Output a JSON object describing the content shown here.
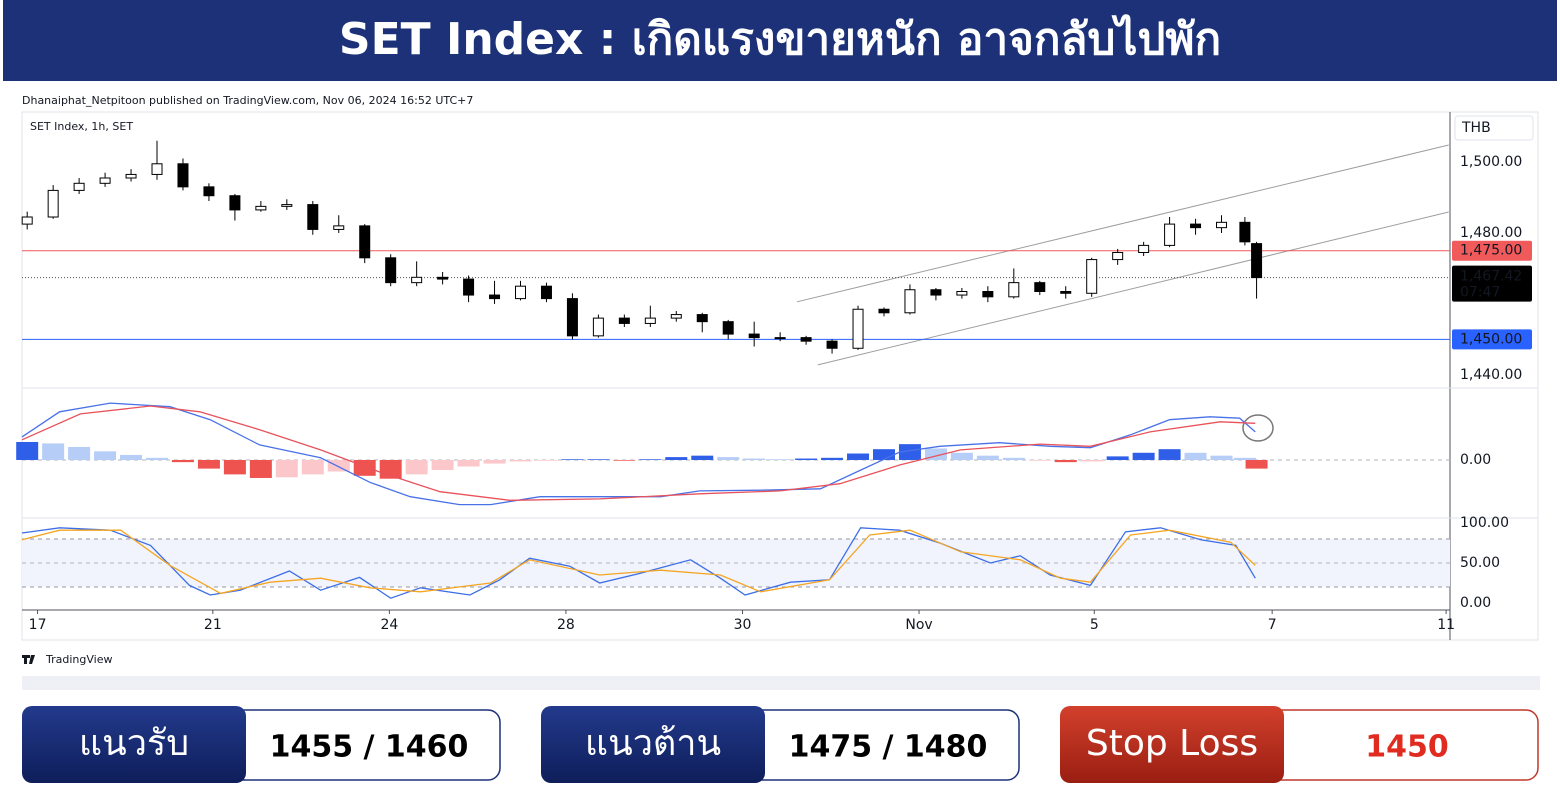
{
  "header": {
    "title": "SET Index : เกิดแรงขายหนัก อาจกลับไปพัก"
  },
  "attribution": "Dhanaiphat_Netpitoon published on TradingView.com, Nov 06, 2024 16:52 UTC+7",
  "logo": "TradingView",
  "chart_data": [
    {
      "type": "candlestick",
      "title": "SET Index, 1h, SET",
      "currency": "THB",
      "up_color": "#ffffff",
      "down_color": "#000000",
      "x": [
        0.4,
        2.4,
        4.4,
        6.4,
        8.4,
        10.4,
        12.4,
        14.4,
        16.4,
        18.4,
        20.4,
        22.4,
        24.4,
        26.4,
        28.4,
        30.4,
        32.4,
        34.4,
        36.4,
        38.4,
        40.4,
        42.4,
        44.4,
        46.4,
        48.4,
        50.4,
        52.4,
        54.4,
        56.4,
        58.4,
        60.4,
        62.4,
        64.4,
        66.4,
        68.4,
        70.4,
        72.4,
        74.4,
        76.4,
        78.4,
        80.4,
        82.4,
        84.4,
        86.4,
        88.4,
        90.4,
        92.4,
        94.2,
        95.1
      ],
      "open": [
        1482.5,
        1484.5,
        1492,
        1494,
        1495.5,
        1496.5,
        1499.5,
        1493,
        1490.5,
        1486.5,
        1487.5,
        1488,
        1481,
        1482,
        1473,
        1466,
        1467.5,
        1467,
        1462.5,
        1461.5,
        1465,
        1461.5,
        1451,
        1456,
        1454.5,
        1456,
        1457,
        1455,
        1451.5,
        1450.5,
        1450.5,
        1449.5,
        1447.5,
        1458.5,
        1457.5,
        1464,
        1462.5,
        1463.5,
        1462,
        1466,
        1463.5,
        1463,
        1472.5,
        1474.5,
        1476.5,
        1482.5,
        1481.5,
        1483,
        1477
      ],
      "high": [
        1486,
        1493.5,
        1495.5,
        1497,
        1498,
        1506,
        1501,
        1494,
        1491,
        1489,
        1489.5,
        1489,
        1485,
        1482.5,
        1474,
        1472,
        1469,
        1468,
        1466.5,
        1466.5,
        1466,
        1463,
        1457,
        1457,
        1459.5,
        1458,
        1457.5,
        1455.5,
        1455,
        1452,
        1451,
        1450,
        1459.5,
        1459,
        1465.5,
        1464.5,
        1464.5,
        1465,
        1470,
        1466.5,
        1465,
        1473,
        1475.5,
        1477.5,
        1484.5,
        1484,
        1485,
        1484.5,
        1477.5
      ],
      "low": [
        1481,
        1484,
        1491,
        1493,
        1494.5,
        1495,
        1492,
        1489,
        1483.5,
        1486,
        1486.5,
        1479.5,
        1480,
        1471.5,
        1465,
        1465,
        1465.5,
        1460.5,
        1460,
        1461,
        1460.5,
        1450,
        1450.5,
        1453.5,
        1453.5,
        1455,
        1452,
        1450,
        1448,
        1449.5,
        1448.5,
        1446,
        1447,
        1456.5,
        1457,
        1461,
        1461.5,
        1460.5,
        1461.5,
        1462.5,
        1461.5,
        1462,
        1471,
        1473.5,
        1476,
        1479.5,
        1480,
        1476.5,
        1461.5
      ],
      "close": [
        1484.5,
        1492,
        1494,
        1495.5,
        1496.5,
        1499.5,
        1493,
        1490.5,
        1486.5,
        1487.5,
        1488,
        1481,
        1482,
        1473,
        1466,
        1467.5,
        1467,
        1462.5,
        1461.5,
        1465,
        1461.5,
        1451,
        1456,
        1454.5,
        1456,
        1457,
        1455,
        1451.5,
        1450.5,
        1450.5,
        1449.5,
        1447.5,
        1458.5,
        1457.5,
        1464,
        1462.5,
        1463.5,
        1462,
        1466,
        1463.5,
        1463,
        1472.5,
        1474.5,
        1476.5,
        1482.5,
        1481.5,
        1483,
        1477.5,
        1467.42
      ],
      "xlim": [
        0,
        110
      ],
      "xticks": [
        {
          "value": 1.2,
          "label": "17"
        },
        {
          "value": 14.7,
          "label": "21"
        },
        {
          "value": 28.3,
          "label": "24"
        },
        {
          "value": 41.9,
          "label": "28"
        },
        {
          "value": 55.5,
          "label": "30"
        },
        {
          "value": 69.1,
          "label": "Nov"
        },
        {
          "value": 82.6,
          "label": "5"
        },
        {
          "value": 96.3,
          "label": "7"
        },
        {
          "value": 109.7,
          "label": "11"
        }
      ],
      "ylim": [
        1436.3,
        1514.1
      ],
      "yticks": [
        {
          "value": 1440,
          "label": "1,440.00"
        },
        {
          "value": 1480,
          "label": "1,480.00"
        },
        {
          "value": 1500,
          "label": "1,500.00"
        }
      ],
      "price_lines": [
        {
          "value": 1475,
          "label": "1,475.00",
          "color": "#f05a5a"
        },
        {
          "value": 1450,
          "label": "1,450.00",
          "color": "#2962ff"
        }
      ],
      "last_price": {
        "value": 1467.42,
        "label": "1,467.42",
        "countdown": "07:47"
      },
      "channels": [
        {
          "x": [
            59.7,
            109.9
          ],
          "values": [
            1460.6,
            1504.8
          ],
          "color": "#9e9e9e"
        },
        {
          "x": [
            61.3,
            109.9
          ],
          "values": [
            1442.8,
            1485.9
          ],
          "color": "#9e9e9e"
        }
      ]
    },
    {
      "type": "macd",
      "ylim": [
        -8.06,
        10
      ],
      "yticks": [
        {
          "value": 0,
          "label": "0.00"
        }
      ],
      "histogram_values": [
        2.5,
        2.3,
        1.8,
        1.2,
        0.7,
        0.3,
        -0.3,
        -1.2,
        -2.0,
        -2.5,
        -2.4,
        -2.0,
        -1.6,
        -2.2,
        -2.6,
        -2.0,
        -1.4,
        -0.9,
        -0.5,
        -0.2,
        -0.1,
        0.1,
        0.1,
        -0.1,
        0.1,
        0.4,
        0.6,
        0.4,
        0.2,
        0.1,
        0.2,
        0.3,
        0.9,
        1.5,
        2.2,
        1.6,
        1.0,
        0.6,
        0.3,
        -0.1,
        -0.3,
        -0.2,
        0.5,
        1.0,
        1.5,
        1.0,
        0.6,
        0.3,
        -1.2
      ],
      "histogram_colors": {
        "up_rising": "#2f5fe8",
        "up_falling": "#b5cdf7",
        "down_falling": "#ef5350",
        "down_rising": "#fbc7cb"
      },
      "series": [
        {
          "color": "#4a72e8",
          "x": [
            0,
            2.9,
            6.8,
            11.4,
            14.5,
            18.3,
            23.0,
            26.8,
            29.9,
            33.7,
            36.1,
            39.9,
            44.5,
            49.2,
            52.2,
            56.9,
            61.5,
            64.6,
            67.6,
            70.7,
            75.3,
            79.2,
            82.3,
            85.4,
            88.4,
            91.5,
            93.8,
            95.0
          ],
          "values": [
            3.2,
            6.7,
            7.9,
            7.4,
            5.6,
            2.1,
            0.3,
            -3.1,
            -5.1,
            -6.2,
            -6.2,
            -5.1,
            -5.1,
            -5.1,
            -4.3,
            -4.2,
            -4.0,
            -1.4,
            1.1,
            1.9,
            2.4,
            1.9,
            1.7,
            3.5,
            5.6,
            6.0,
            5.8,
            3.9
          ]
        },
        {
          "color": "#e8525a",
          "x": [
            0,
            4.5,
            9.9,
            13.7,
            18.3,
            23.0,
            27.6,
            32.2,
            37.6,
            44.5,
            52.2,
            58.4,
            63.0,
            67.6,
            72.3,
            78.4,
            82.3,
            86.9,
            92.3,
            95.0
          ],
          "values": [
            2.8,
            6.4,
            7.5,
            6.7,
            4.2,
            1.4,
            -1.7,
            -4.4,
            -5.6,
            -5.4,
            -4.7,
            -4.3,
            -3.3,
            -0.7,
            1.4,
            2.2,
            1.9,
            3.9,
            5.3,
            5.1
          ]
        }
      ]
    },
    {
      "type": "stochastic",
      "ylim": [
        -8.75,
        106.25
      ],
      "bands": [
        20,
        80
      ],
      "yticks": [
        {
          "value": 0,
          "label": "0.00"
        },
        {
          "value": 50,
          "label": "50.00"
        },
        {
          "value": 100,
          "label": "100.00"
        }
      ],
      "series": [
        {
          "color": "#3d6ee8",
          "x": [
            0,
            2.9,
            6.8,
            9.9,
            12.9,
            14.5,
            16.8,
            20.6,
            23.0,
            26.0,
            28.4,
            30.7,
            34.5,
            36.8,
            39.1,
            42.2,
            44.5,
            47.6,
            51.5,
            53.8,
            55.7,
            59.2,
            62.2,
            64.6,
            67.6,
            70.7,
            74.6,
            76.9,
            79.2,
            82.3,
            85.0,
            87.7,
            90.8,
            93.5,
            95.0
          ],
          "values": [
            87.5,
            94,
            91,
            72,
            22,
            10,
            16,
            40,
            16,
            32,
            6,
            19,
            10,
            29,
            56,
            46,
            25,
            37,
            54,
            31,
            10,
            26,
            29,
            94,
            91,
            75,
            50,
            59,
            35,
            22,
            89,
            94,
            79,
            72,
            31
          ]
        },
        {
          "color": "#f5a524",
          "x": [
            0,
            2.9,
            7.6,
            11.4,
            15.3,
            19.1,
            23.0,
            26.8,
            30.7,
            36.1,
            39.1,
            44.5,
            49.2,
            53.8,
            56.9,
            62.2,
            65.3,
            68.4,
            72.3,
            76.9,
            80.0,
            82.3,
            85.4,
            88.4,
            93.1,
            95.0
          ],
          "values": [
            79,
            91,
            91,
            47,
            12,
            26,
            31,
            19,
            14,
            25,
            54,
            35,
            41,
            35,
            14,
            29,
            85,
            91,
            64,
            54,
            31,
            26,
            85,
            91,
            76,
            47
          ]
        }
      ]
    }
  ],
  "levels": [
    {
      "label": "แนวรับ",
      "value": "1455 / 1460"
    },
    {
      "label": "แนวต้าน",
      "value": "1475 / 1480"
    },
    {
      "label": "Stop Loss",
      "value": 1450
    }
  ]
}
